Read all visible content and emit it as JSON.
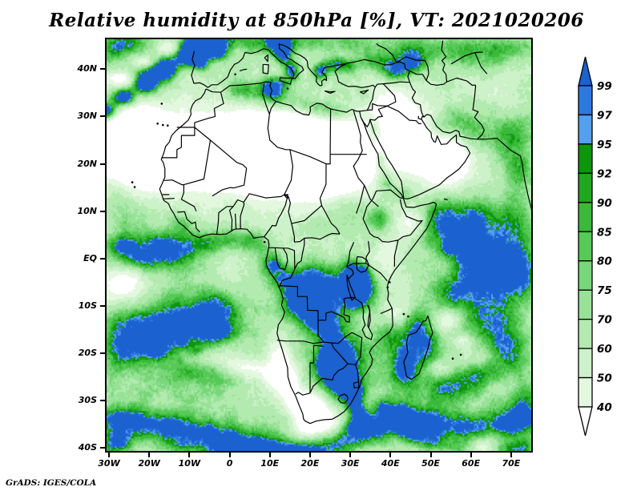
{
  "title": "Relative humidity at 850hPa [%], VT: 2021020206",
  "credit": "GrADS: IGES/COLA",
  "axes": {
    "lat_ticks": [
      "40N",
      "30N",
      "20N",
      "10N",
      "EQ",
      "10S",
      "20S",
      "30S",
      "40S"
    ],
    "lat_values": [
      40,
      30,
      20,
      10,
      0,
      -10,
      -20,
      -30,
      -40
    ],
    "lon_ticks": [
      "30W",
      "20W",
      "10W",
      "0",
      "10E",
      "20E",
      "30E",
      "40E",
      "50E",
      "60E",
      "70E"
    ],
    "lon_values": [
      -30,
      -20,
      -10,
      0,
      10,
      20,
      30,
      40,
      50,
      60,
      70
    ]
  },
  "colorbar": {
    "labels": [
      "99",
      "97",
      "95",
      "92",
      "90",
      "85",
      "80",
      "75",
      "70",
      "60",
      "50",
      "40"
    ],
    "segment_colors_top_to_bottom": [
      "#2d79e0",
      "#549fee",
      "#0b960b",
      "#1fa71f",
      "#3ab93a",
      "#57c957",
      "#79d679",
      "#97e297",
      "#b3eab0",
      "#cdf2ca",
      "#e4f8e0"
    ],
    "above_color": "#1b61cf",
    "below_color": "#ffffff"
  },
  "chart_data": {
    "type": "heatmap",
    "variable": "Relative humidity",
    "level": "850hPa",
    "units": "%",
    "valid_time": "2021020206",
    "lon_range": [
      -30.6,
      75.0
    ],
    "lat_range": [
      -40.6,
      46.3
    ],
    "levels": [
      40,
      50,
      60,
      70,
      75,
      80,
      85,
      90,
      92,
      95,
      97,
      99
    ],
    "palette": {
      "below": "#ffffff",
      "bins": [
        "#e4f8e0",
        "#cdf2ca",
        "#b3eab0",
        "#97e297",
        "#79d679",
        "#57c957",
        "#3ab93a",
        "#1fa71f",
        "#0b960b",
        "#549fee",
        "#2d79e0"
      ],
      "above": "#1b61cf"
    },
    "base_value": 58,
    "noise": {
      "amp": 12,
      "fine_amp": 4,
      "warp": 3.2,
      "seed": 7
    },
    "features": [
      [
        -31,
        31,
        3,
        2,
        62
      ],
      [
        -26,
        34,
        3,
        2,
        62
      ],
      [
        -21,
        37,
        3,
        2.2,
        60
      ],
      [
        -16,
        40,
        3,
        2.2,
        60
      ],
      [
        -11,
        43,
        3,
        2.4,
        58
      ],
      [
        -6,
        45.8,
        3.5,
        2.4,
        55
      ],
      [
        -29,
        33,
        5,
        3.5,
        24
      ],
      [
        -19,
        39,
        5,
        3.5,
        22
      ],
      [
        -9,
        44.5,
        5,
        3,
        20
      ],
      [
        -27,
        38,
        3.5,
        1.4,
        -30
      ],
      [
        -21,
        41.5,
        3.5,
        1.4,
        -30
      ],
      [
        -15,
        44.3,
        3.5,
        1.4,
        -28
      ],
      [
        -29,
        44.5,
        4,
        3,
        32
      ],
      [
        -24,
        46,
        5,
        2.5,
        28
      ],
      [
        5,
        22,
        16,
        7.5,
        -48
      ],
      [
        -6,
        23,
        10,
        6,
        -42
      ],
      [
        18,
        20,
        13,
        7,
        -45
      ],
      [
        28,
        22,
        10,
        7,
        -42
      ],
      [
        -17,
        22,
        9,
        7,
        -42
      ],
      [
        -26,
        22,
        9,
        8,
        -38
      ],
      [
        -27,
        30,
        8,
        5,
        -30
      ],
      [
        12,
        28,
        9,
        4,
        -25
      ],
      [
        46,
        25,
        9,
        6,
        -45
      ],
      [
        54,
        20,
        7,
        5,
        -35
      ],
      [
        39,
        33,
        7,
        3.5,
        -22
      ],
      [
        -7.5,
        41.5,
        2.2,
        1.8,
        42
      ],
      [
        -3,
        43.5,
        2.8,
        1.8,
        38
      ],
      [
        -8.5,
        44.5,
        2,
        1.5,
        30
      ],
      [
        -2,
        46.5,
        6,
        2.5,
        30
      ],
      [
        8,
        46,
        6,
        2.5,
        28
      ],
      [
        18,
        46,
        6,
        2.5,
        26
      ],
      [
        30,
        45.5,
        8,
        3,
        24
      ],
      [
        45,
        44,
        8,
        3.5,
        28
      ],
      [
        60,
        44,
        8,
        3.5,
        22
      ],
      [
        70,
        44,
        6,
        3,
        22
      ],
      [
        13.5,
        43,
        2.2,
        2.5,
        40
      ],
      [
        15.5,
        39.5,
        2,
        2,
        42
      ],
      [
        12,
        45.5,
        3,
        2,
        34
      ],
      [
        22.5,
        39.5,
        2.2,
        1.8,
        38
      ],
      [
        26,
        41,
        2.5,
        1.5,
        30
      ],
      [
        29.5,
        40.5,
        3,
        2,
        26
      ],
      [
        41,
        39.5,
        3.5,
        2.5,
        40
      ],
      [
        36,
        41.5,
        4,
        2,
        24
      ],
      [
        45.5,
        41,
        3,
        2.5,
        30
      ],
      [
        3,
        35.5,
        4,
        2.2,
        26
      ],
      [
        9.5,
        34.5,
        4,
        2.5,
        32
      ],
      [
        13,
        36.5,
        3,
        2,
        26
      ],
      [
        15,
        33,
        4,
        2.2,
        26
      ],
      [
        21,
        32,
        4,
        2,
        24
      ],
      [
        26,
        31,
        4,
        1.8,
        20
      ],
      [
        10,
        37,
        3,
        2,
        24
      ],
      [
        36,
        26,
        1.8,
        2.5,
        28
      ],
      [
        37.5,
        21,
        1.8,
        2.5,
        28
      ],
      [
        39,
        16,
        2.2,
        2.5,
        26
      ],
      [
        43,
        13.5,
        2.5,
        2,
        24
      ],
      [
        34,
        34,
        3,
        2,
        14
      ],
      [
        52,
        27.5,
        4,
        3,
        26
      ],
      [
        57,
        30,
        5,
        3,
        22
      ],
      [
        61,
        27,
        4,
        3,
        20
      ],
      [
        68,
        25,
        5,
        4,
        22
      ],
      [
        72,
        19,
        4,
        5,
        26
      ],
      [
        73,
        28,
        4,
        4,
        22
      ],
      [
        57,
        4,
        8,
        5.5,
        38
      ],
      [
        65,
        0,
        8,
        6,
        35
      ],
      [
        52,
        9,
        5,
        4,
        26
      ],
      [
        72,
        -3,
        6,
        6,
        32
      ],
      [
        62,
        10,
        6,
        4,
        24
      ],
      [
        71,
        8,
        5,
        5,
        26
      ],
      [
        54,
        2,
        1.2,
        1,
        20
      ],
      [
        45,
        7.5,
        3.5,
        3,
        -24
      ],
      [
        39,
        1,
        3.5,
        3.5,
        -16
      ],
      [
        -26,
        2,
        6,
        3.5,
        30
      ],
      [
        -17,
        2.5,
        6,
        3.5,
        33
      ],
      [
        -8,
        3,
        5,
        3,
        32
      ],
      [
        -1,
        4,
        4,
        2.5,
        28
      ],
      [
        6,
        3.5,
        4,
        2.5,
        26
      ],
      [
        -22,
        -1,
        5,
        3,
        22
      ],
      [
        -13,
        0,
        5,
        3,
        24
      ],
      [
        -27,
        3,
        3,
        1.8,
        12
      ],
      [
        -24,
        9,
        6,
        5,
        16
      ],
      [
        -29,
        14,
        4,
        4,
        14
      ],
      [
        -12,
        7.5,
        3,
        2.5,
        18
      ],
      [
        37,
        8.5,
        3,
        2.5,
        24
      ],
      [
        24,
        7,
        5,
        3,
        14
      ],
      [
        30,
        10,
        4,
        3,
        12
      ],
      [
        -28,
        -6,
        4.5,
        4,
        -24
      ],
      [
        -24,
        -4,
        4,
        3,
        -18
      ],
      [
        10,
        -1,
        3,
        3,
        30
      ],
      [
        13,
        -4,
        3.5,
        3,
        26
      ],
      [
        11.5,
        -1.5,
        0.8,
        0.8,
        22
      ],
      [
        20,
        -3,
        5,
        4,
        24
      ],
      [
        26,
        -5,
        5,
        4,
        26
      ],
      [
        24,
        -9,
        5,
        4,
        24
      ],
      [
        17,
        -8,
        4,
        3.5,
        22
      ],
      [
        30.5,
        -2.5,
        2.5,
        3,
        32
      ],
      [
        33.5,
        -4,
        2.5,
        3,
        34
      ],
      [
        34,
        -8,
        3.5,
        3.5,
        28
      ],
      [
        31,
        -9,
        3,
        3,
        24
      ],
      [
        33.5,
        -2.5,
        1,
        1.2,
        22
      ],
      [
        -10,
        -14,
        12,
        6.5,
        33
      ],
      [
        -20,
        -16,
        8,
        6,
        28
      ],
      [
        -27,
        -18,
        6,
        6,
        26
      ],
      [
        -4,
        -10,
        7,
        4,
        24
      ],
      [
        -2,
        -15.5,
        4.5,
        2.2,
        28
      ],
      [
        -18,
        -19,
        2.5,
        2.2,
        24
      ],
      [
        -12,
        -17.5,
        1.5,
        1.2,
        16
      ],
      [
        -8,
        -19.5,
        1.5,
        1,
        14
      ],
      [
        -6,
        -13,
        6,
        3,
        12
      ],
      [
        -8,
        -24,
        6,
        2.2,
        16
      ],
      [
        0,
        -26,
        5,
        2,
        12
      ],
      [
        17,
        -9,
        4,
        4,
        22
      ],
      [
        21,
        -13,
        4,
        4,
        24
      ],
      [
        25,
        -15,
        4,
        3.5,
        26
      ],
      [
        12.5,
        -22,
        3,
        5,
        -30
      ],
      [
        15,
        -27,
        3.5,
        4,
        -28
      ],
      [
        18,
        -31,
        4,
        3,
        -30
      ],
      [
        22,
        -33,
        5,
        2.5,
        -26
      ],
      [
        -4,
        -21,
        5,
        2,
        -22
      ],
      [
        4,
        -23,
        5,
        2,
        -24
      ],
      [
        11,
        -25,
        4,
        2,
        -22
      ],
      [
        26,
        -24,
        7,
        6,
        28
      ],
      [
        30,
        -19,
        5,
        4,
        26
      ],
      [
        24.5,
        -21.5,
        3.5,
        3,
        40
      ],
      [
        27.5,
        -24.5,
        3.5,
        3,
        42
      ],
      [
        30,
        -28,
        3,
        2.8,
        40
      ],
      [
        31.5,
        -31.5,
        2,
        2.5,
        34
      ],
      [
        33,
        -34.5,
        2,
        2.2,
        30
      ],
      [
        21,
        -31,
        3.5,
        3,
        -32
      ],
      [
        24,
        -35,
        5,
        2.5,
        -30
      ],
      [
        19,
        -36,
        4,
        2.5,
        -26
      ],
      [
        40,
        -16,
        4,
        4,
        26
      ],
      [
        45,
        -20,
        4,
        5,
        24
      ],
      [
        47,
        -14,
        3,
        4,
        26
      ],
      [
        43,
        -24,
        3,
        3,
        22
      ],
      [
        50,
        -19,
        2.5,
        4,
        20
      ],
      [
        41,
        -12,
        2.5,
        2,
        -14
      ],
      [
        57,
        -7,
        8,
        4,
        30
      ],
      [
        65,
        -14,
        7,
        5,
        28
      ],
      [
        55,
        -27,
        6,
        4,
        26
      ],
      [
        63,
        -25,
        6,
        4,
        24
      ],
      [
        70,
        -20,
        5,
        5,
        26
      ],
      [
        73,
        -30,
        5,
        4,
        24
      ],
      [
        54,
        -13,
        3,
        2,
        -26
      ],
      [
        58,
        -17.5,
        3,
        1.6,
        -22
      ],
      [
        52,
        -23,
        4,
        2,
        -24
      ],
      [
        61,
        -21,
        3.5,
        1.8,
        -18
      ],
      [
        67,
        -27,
        3,
        2,
        -16
      ],
      [
        -15,
        -28,
        18,
        9,
        14
      ],
      [
        45,
        -25,
        18,
        10,
        14
      ],
      [
        65,
        -8,
        12,
        9,
        12
      ],
      [
        20,
        -8,
        12,
        8,
        10
      ],
      [
        25,
        -35,
        25,
        6,
        12
      ],
      [
        -29,
        -34,
        5,
        3,
        34
      ],
      [
        -22,
        -34.5,
        5,
        3,
        32
      ],
      [
        -15,
        -35.5,
        5,
        3,
        32
      ],
      [
        -8,
        -36.5,
        5,
        3,
        33
      ],
      [
        -1,
        -38,
        5,
        3,
        35
      ],
      [
        6,
        -39.5,
        5,
        3,
        36
      ],
      [
        13,
        -40.5,
        5,
        2.6,
        34
      ],
      [
        20,
        -41,
        5,
        2.4,
        32
      ],
      [
        27,
        -39.5,
        5,
        2.6,
        30
      ],
      [
        34,
        -36.5,
        5,
        3,
        31
      ],
      [
        41,
        -34,
        5,
        3,
        33
      ],
      [
        48,
        -34.5,
        5,
        3,
        33
      ],
      [
        55,
        -35.5,
        5,
        3,
        31
      ],
      [
        62,
        -35.5,
        5,
        3,
        30
      ],
      [
        69,
        -35,
        5,
        3,
        31
      ],
      [
        74,
        -34,
        4,
        3,
        30
      ],
      [
        -27,
        -38,
        4,
        2,
        26
      ],
      [
        -12,
        -39.5,
        5,
        1.8,
        22
      ],
      [
        -2,
        -40.5,
        5,
        1.8,
        24
      ],
      [
        8,
        -41.5,
        5,
        1.6,
        24
      ],
      [
        18,
        -41.8,
        4,
        1.4,
        20
      ],
      [
        38,
        -31.5,
        2,
        2,
        22
      ],
      [
        42,
        -34,
        2.5,
        2.5,
        26
      ],
      [
        46,
        -37,
        3,
        2.2,
        26
      ],
      [
        51,
        -39,
        3.5,
        2,
        24
      ],
      [
        57,
        -40,
        3.5,
        1.8,
        20
      ],
      [
        30,
        -35.5,
        1.5,
        1.5,
        16
      ],
      [
        -29,
        -40,
        4,
        2.5,
        30
      ],
      [
        73,
        -40,
        4,
        2.5,
        28
      ],
      [
        68,
        -40.5,
        4,
        2,
        24
      ],
      [
        63,
        -39.8,
        3.5,
        1.6,
        -22
      ]
    ]
  }
}
